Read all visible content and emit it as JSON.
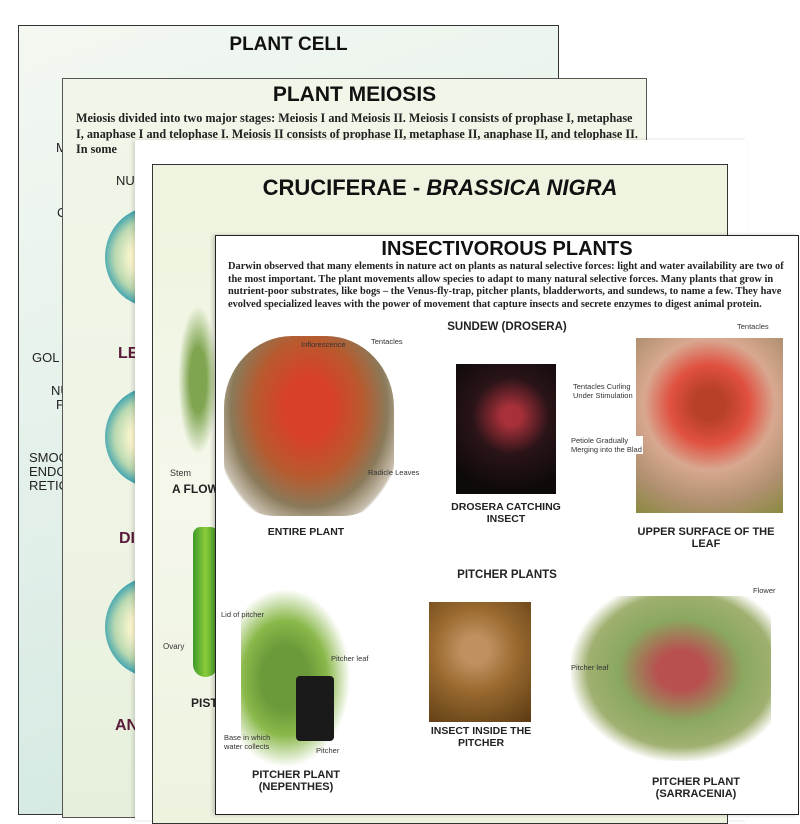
{
  "plant_cell": {
    "title": "PLANT CELL",
    "labels": [
      "M",
      "C",
      "GOL",
      "NU\nP",
      "SMOO\nENDO\nRETIC"
    ]
  },
  "plant_meiosis": {
    "title": "PLANT MEIOSIS",
    "text": "Meiosis divided into two major stages: Meiosis I and Meiosis II. Meiosis I consists of prophase I, metaphase I, anaphase I and telophase I. Meiosis II consists of prophase II, metaphase II, anaphase II, and telophase II. In some",
    "labels": [
      "NU",
      "LE",
      "DI",
      "AN"
    ]
  },
  "cruciferae": {
    "title": "CRUCIFERAE - ",
    "title_italic": "BRASSICA NIGRA",
    "labels": [
      "Stem",
      "A FLOW",
      "Ovary",
      "PIST"
    ]
  },
  "insectivorous": {
    "title": "INSECTIVOROUS PLANTS",
    "intro": "Darwin observed that many elements in nature act on plants as natural selective forces: light and water availability are two of the most important. The plant movements allow species to adapt to many natural selective forces. Many plants that grow in nutrient-poor substrates, like bogs – the Venus-fly-trap, pitcher plants, bladderworts, and sundews, to name a few. They have evolved specialized leaves with the power of movement that capture insects and secrete enzymes to digest animal protein.",
    "sundew": {
      "heading": "SUNDEW (DROSERA)",
      "captions": [
        "ENTIRE PLANT",
        "DROSERA CATCHING INSECT",
        "UPPER SURFACE OF THE LEAF"
      ],
      "annotations": [
        "Inflorescence",
        "Tentacles",
        "Radicle Leaves",
        "Tentacles",
        "Tentacles Curling Under Stimulation",
        "Petiole Gradually Merging into the Blad"
      ]
    },
    "pitcher": {
      "heading": "PITCHER PLANTS",
      "captions": [
        "PITCHER PLANT (NEPENTHES)",
        "INSECT INSIDE THE PITCHER",
        "PITCHER PLANT (SARRACENIA)"
      ],
      "annotations": [
        "Lid of pitcher",
        "Pitcher leaf",
        "Base in which water collects",
        "Pitcher",
        "Flower",
        "Pitcher leaf"
      ]
    }
  }
}
